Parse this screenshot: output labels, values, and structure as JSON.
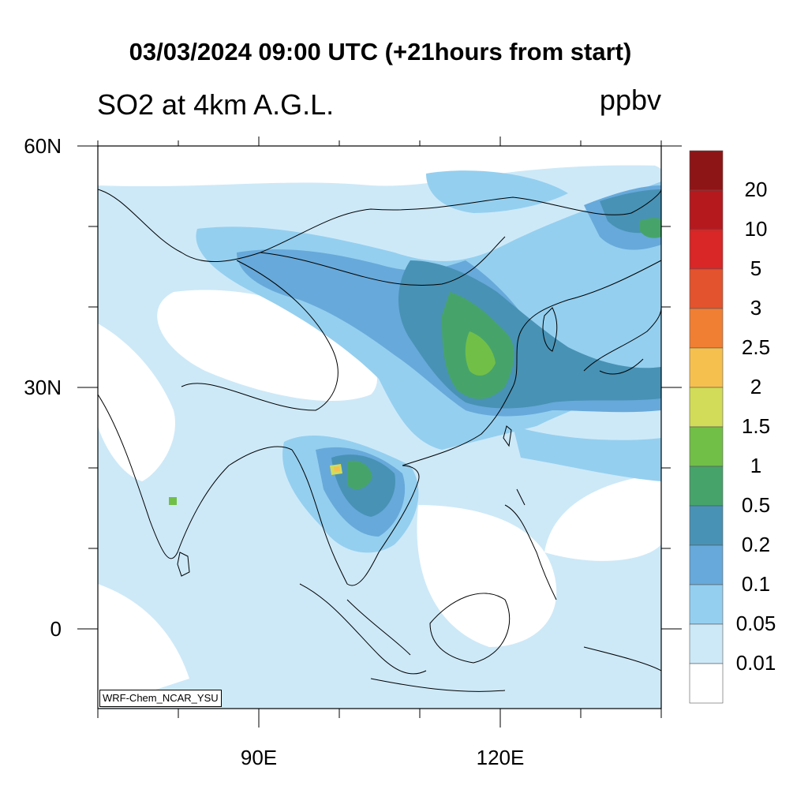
{
  "header": {
    "title": "03/03/2024 09:00 UTC (+21hours from start)",
    "subtitle": "SO2 at 4km A.G.L.",
    "units": "ppbv"
  },
  "map": {
    "extent": {
      "lon": [
        70,
        140
      ],
      "lat": [
        -10,
        60
      ]
    },
    "lat_ticks": [
      "60N",
      "30N",
      "0"
    ],
    "lon_ticks": [
      "90E",
      "120E"
    ],
    "credit": "WRF-Chem_NCAR_YSU"
  },
  "colorbar": {
    "labels": [
      "20",
      "10",
      "5",
      "3",
      "2.5",
      "2",
      "1.5",
      "1",
      "0.5",
      "0.2",
      "0.1",
      "0.05",
      "0.01"
    ],
    "colors": [
      "#8e1516",
      "#b5191d",
      "#d92626",
      "#e3532d",
      "#f07f34",
      "#f6c04f",
      "#d2dc58",
      "#72bf47",
      "#46a46b",
      "#4892b5",
      "#67a9da",
      "#94cfef",
      "#cde9f8",
      "#ffffff"
    ]
  }
}
